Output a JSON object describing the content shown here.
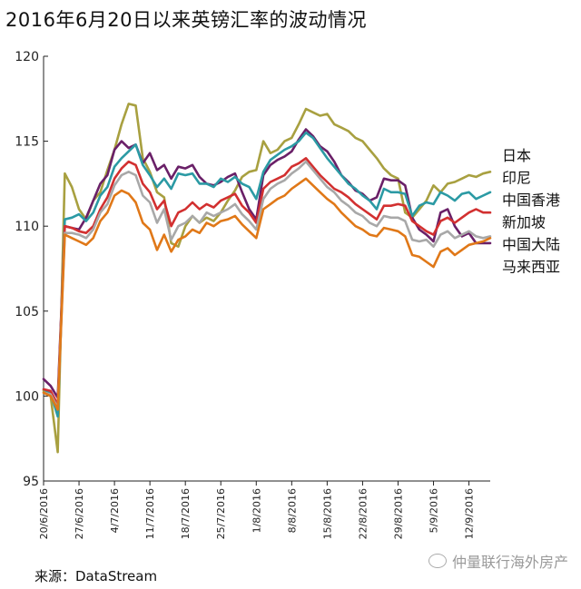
{
  "chart_data": {
    "type": "line",
    "title": "2016年6月20日以来英镑汇率的波动情况",
    "xlabel": "",
    "ylabel": "",
    "ylim": [
      95,
      120
    ],
    "yticks": [
      95,
      100,
      105,
      110,
      115,
      120
    ],
    "xticks": [
      "20/6/2016",
      "27/6/2016",
      "4/7/2016",
      "11/7/2016",
      "18/7/2016",
      "25/7/2016",
      "1/8/2016",
      "8/8/2016",
      "15/8/2016",
      "22/8/2016",
      "29/8/2016",
      "5/9/2016",
      "12/9/2016"
    ],
    "x": [
      "20/6/2016",
      "21/6/2016",
      "22/6/2016",
      "23/6/2016",
      "24/6/2016",
      "27/6/2016",
      "28/6/2016",
      "29/6/2016",
      "30/6/2016",
      "1/7/2016",
      "4/7/2016",
      "5/7/2016",
      "6/7/2016",
      "7/7/2016",
      "8/7/2016",
      "11/7/2016",
      "12/7/2016",
      "13/7/2016",
      "14/7/2016",
      "15/7/2016",
      "18/7/2016",
      "19/7/2016",
      "20/7/2016",
      "21/7/2016",
      "22/7/2016",
      "25/7/2016",
      "26/7/2016",
      "27/7/2016",
      "28/7/2016",
      "29/7/2016",
      "1/8/2016",
      "2/8/2016",
      "3/8/2016",
      "4/8/2016",
      "5/8/2016",
      "8/8/2016",
      "9/8/2016",
      "10/8/2016",
      "11/8/2016",
      "12/8/2016",
      "15/8/2016",
      "16/8/2016",
      "17/8/2016",
      "18/8/2016",
      "19/8/2016",
      "22/8/2016",
      "23/8/2016",
      "24/8/2016",
      "25/8/2016",
      "26/8/2016",
      "29/8/2016",
      "30/8/2016",
      "31/8/2016",
      "1/9/2016",
      "2/9/2016",
      "5/9/2016",
      "6/9/2016",
      "7/9/2016",
      "8/9/2016",
      "9/9/2016",
      "12/9/2016",
      "13/9/2016",
      "14/9/2016",
      "15/9/2016"
    ],
    "series": [
      {
        "name": "日本",
        "color": "#a8a040",
        "values": [
          100.3,
          100.0,
          96.7,
          113.1,
          112.3,
          111.0,
          110.4,
          111.5,
          112.0,
          113.3,
          114.5,
          116.0,
          117.2,
          117.1,
          114.0,
          113.2,
          112.0,
          111.7,
          109.0,
          108.8,
          110.0,
          110.6,
          110.2,
          110.5,
          110.3,
          110.8,
          111.5,
          112.1,
          112.9,
          113.2,
          113.3,
          115.0,
          114.3,
          114.5,
          115.0,
          115.2,
          116.0,
          116.9,
          116.7,
          116.5,
          116.6,
          116.0,
          115.8,
          115.6,
          115.2,
          115.0,
          114.5,
          114.0,
          113.4,
          113.0,
          112.8,
          110.8,
          110.5,
          111.0,
          111.5,
          112.4,
          112.0,
          112.5,
          112.6,
          112.8,
          113.0,
          112.9,
          113.1,
          113.2
        ]
      },
      {
        "name": "印尼",
        "color": "#6a2068",
        "values": [
          101.0,
          100.6,
          99.9,
          110.0,
          109.9,
          109.8,
          110.5,
          111.5,
          112.5,
          113.0,
          114.5,
          115.0,
          114.6,
          114.8,
          113.7,
          114.3,
          113.3,
          113.6,
          112.8,
          113.5,
          113.4,
          113.6,
          112.9,
          112.5,
          112.4,
          112.6,
          112.9,
          113.1,
          112.0,
          111.0,
          110.4,
          113.0,
          113.6,
          113.9,
          114.1,
          114.4,
          115.1,
          115.7,
          115.3,
          114.7,
          114.4,
          113.8,
          113.0,
          112.6,
          112.1,
          111.9,
          111.5,
          111.7,
          112.8,
          112.7,
          112.7,
          112.4,
          110.5,
          109.8,
          109.5,
          109.1,
          110.8,
          111.0,
          110.0,
          109.4,
          109.6,
          109.0,
          109.0,
          109.0
        ]
      },
      {
        "name": "中国香港",
        "color": "#2b9aa4",
        "values": [
          100.4,
          100.2,
          98.8,
          110.4,
          110.5,
          110.7,
          110.3,
          110.8,
          111.8,
          112.3,
          113.5,
          114.0,
          114.4,
          114.8,
          113.6,
          113.0,
          112.3,
          112.8,
          112.2,
          113.1,
          113.0,
          113.1,
          112.5,
          112.5,
          112.3,
          112.8,
          112.6,
          112.9,
          112.5,
          112.3,
          111.6,
          113.2,
          113.9,
          114.2,
          114.5,
          114.7,
          115.0,
          115.5,
          115.2,
          114.6,
          114.0,
          113.5,
          113.0,
          112.5,
          112.2,
          111.8,
          111.5,
          111.0,
          112.2,
          112.0,
          112.0,
          111.9,
          110.6,
          111.2,
          111.4,
          111.3,
          112.0,
          111.8,
          111.5,
          111.9,
          112.0,
          111.6,
          111.8,
          112.0
        ]
      },
      {
        "name": "新加坡",
        "color": "#d23030",
        "values": [
          100.4,
          100.3,
          99.5,
          110.0,
          109.9,
          109.7,
          109.6,
          110.0,
          111.0,
          111.7,
          112.8,
          113.4,
          113.8,
          113.6,
          112.5,
          112.0,
          111.0,
          111.5,
          110.0,
          110.8,
          111.0,
          111.4,
          111.0,
          111.3,
          111.1,
          111.5,
          111.7,
          111.9,
          111.2,
          110.8,
          110.2,
          112.2,
          112.6,
          112.8,
          113.0,
          113.5,
          113.7,
          114.0,
          113.5,
          113.0,
          112.6,
          112.2,
          112.0,
          111.7,
          111.3,
          111.0,
          110.7,
          110.4,
          111.2,
          111.2,
          111.3,
          111.2,
          110.3,
          110.0,
          109.7,
          109.5,
          110.3,
          110.5,
          110.2,
          110.5,
          110.8,
          111.0,
          110.8,
          110.8
        ]
      },
      {
        "name": "中国大陆",
        "color": "#a8a8a8",
        "values": [
          100.2,
          100.1,
          99.3,
          109.6,
          109.6,
          109.5,
          109.3,
          109.8,
          110.8,
          111.3,
          112.4,
          113.0,
          113.2,
          113.0,
          111.8,
          111.4,
          110.2,
          111.0,
          109.2,
          110.0,
          110.2,
          110.6,
          110.2,
          110.8,
          110.6,
          110.8,
          111.0,
          111.3,
          110.7,
          110.3,
          109.8,
          111.6,
          112.2,
          112.5,
          112.7,
          113.1,
          113.4,
          113.8,
          113.3,
          112.8,
          112.3,
          112.0,
          111.5,
          111.2,
          110.8,
          110.6,
          110.2,
          110.0,
          110.6,
          110.5,
          110.5,
          110.3,
          109.2,
          109.1,
          109.2,
          108.8,
          109.5,
          109.7,
          109.3,
          109.5,
          109.7,
          109.4,
          109.3,
          109.4
        ]
      },
      {
        "name": "马来西亚",
        "color": "#e07818",
        "values": [
          100.2,
          100.0,
          99.2,
          109.5,
          109.3,
          109.1,
          108.9,
          109.3,
          110.3,
          110.8,
          111.8,
          112.1,
          111.9,
          111.4,
          110.2,
          109.8,
          108.6,
          109.5,
          108.5,
          109.2,
          109.4,
          109.8,
          109.6,
          110.2,
          110.0,
          110.3,
          110.4,
          110.6,
          110.1,
          109.7,
          109.3,
          111.0,
          111.3,
          111.6,
          111.8,
          112.2,
          112.5,
          112.8,
          112.4,
          112.0,
          111.6,
          111.3,
          110.8,
          110.4,
          110.0,
          109.8,
          109.5,
          109.4,
          109.9,
          109.8,
          109.7,
          109.4,
          108.3,
          108.2,
          107.9,
          107.6,
          108.5,
          108.7,
          108.3,
          108.6,
          108.9,
          109.0,
          109.1,
          109.3
        ]
      }
    ],
    "legend_placement": "right",
    "grid": false,
    "source": "来源：DataStream"
  },
  "watermark": "仲量联行海外房产",
  "watermark_icon": "wechat-icon"
}
